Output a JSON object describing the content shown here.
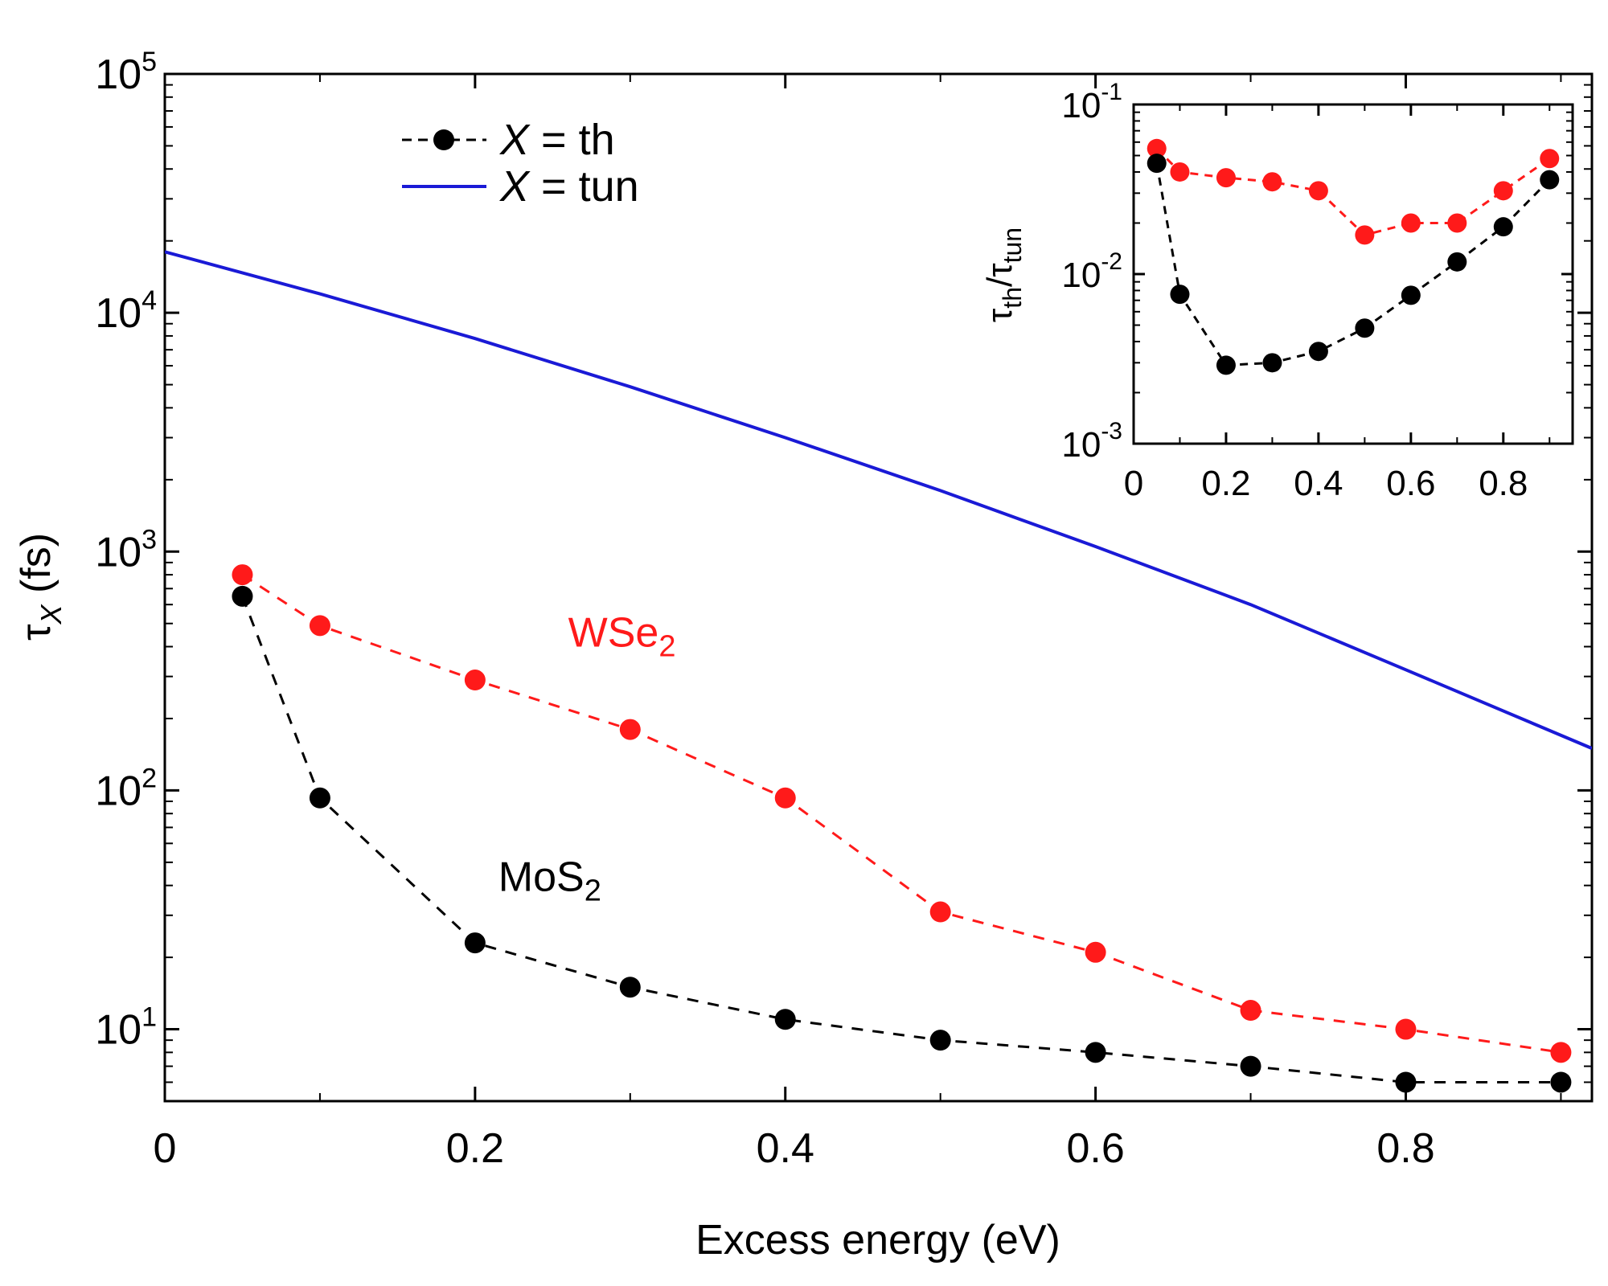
{
  "chart_data": [
    {
      "type": "line",
      "title": "",
      "xlabel": "Excess energy (eV)",
      "ylabel": {
        "main": "τ",
        "sub": "X",
        "unit": " (fs)"
      },
      "xscale": "linear",
      "yscale": "log",
      "xlim": [
        0,
        0.92
      ],
      "ylim": [
        5,
        100000
      ],
      "xticks": [
        {
          "value": 0,
          "label": "0"
        },
        {
          "value": 0.2,
          "label": "0.2"
        },
        {
          "value": 0.4,
          "label": "0.4"
        },
        {
          "value": 0.6,
          "label": "0.6"
        },
        {
          "value": 0.8,
          "label": "0.8"
        }
      ],
      "yticks": [
        {
          "value": 10,
          "base": "10",
          "exp": "1"
        },
        {
          "value": 100,
          "base": "10",
          "exp": "2"
        },
        {
          "value": 1000,
          "base": "10",
          "exp": "3"
        },
        {
          "value": 10000,
          "base": "10",
          "exp": "4"
        },
        {
          "value": 100000,
          "base": "10",
          "exp": "5"
        }
      ],
      "legend": {
        "placement": "top-left",
        "entries": [
          {
            "italic": "X",
            "text": " = th",
            "style": "black dashed line with circle marker"
          },
          {
            "italic": "X",
            "text": " = tun",
            "style": "blue solid line"
          }
        ]
      },
      "series": [
        {
          "name": "X = tun",
          "color": "#1a1ad6",
          "line": "solid",
          "marker": "none",
          "x": [
            0,
            0.1,
            0.2,
            0.3,
            0.4,
            0.5,
            0.6,
            0.7,
            0.8,
            0.92
          ],
          "y": [
            18000,
            12000,
            7800,
            4900,
            3000,
            1800,
            1050,
            600,
            320,
            150
          ]
        },
        {
          "name": "WSe2 (X = th)",
          "color": "#ff1a1a",
          "line": "dashed",
          "marker": "circle",
          "x": [
            0.05,
            0.1,
            0.2,
            0.3,
            0.4,
            0.5,
            0.6,
            0.7,
            0.8,
            0.9
          ],
          "y": [
            800,
            490,
            290,
            180,
            93,
            31,
            21,
            12,
            10,
            8
          ]
        },
        {
          "name": "MoS2 (X = th)",
          "color": "#000000",
          "line": "dashed",
          "marker": "circle",
          "x": [
            0.05,
            0.1,
            0.2,
            0.3,
            0.4,
            0.5,
            0.6,
            0.7,
            0.8,
            0.9
          ],
          "y": [
            650,
            93,
            23,
            15,
            11,
            9,
            8,
            7,
            6,
            6
          ]
        }
      ],
      "annotations": [
        {
          "text": "WSe",
          "sub": "2",
          "color": "#ff1a1a",
          "x": 0.26,
          "y": 400
        },
        {
          "text": "MoS",
          "sub": "2",
          "color": "#000000",
          "x": 0.215,
          "y": 38
        }
      ]
    },
    {
      "type": "line",
      "title": "",
      "placement": "inset top-right",
      "xlabel": "",
      "ylabel": {
        "main": "τ",
        "sub1": "th",
        "sep": "/τ",
        "sub2": "tun"
      },
      "xscale": "linear",
      "yscale": "log",
      "xlim": [
        0,
        0.95
      ],
      "ylim": [
        0.001,
        0.1
      ],
      "xticks": [
        {
          "value": 0,
          "label": "0"
        },
        {
          "value": 0.2,
          "label": "0.2"
        },
        {
          "value": 0.4,
          "label": "0.4"
        },
        {
          "value": 0.6,
          "label": "0.6"
        },
        {
          "value": 0.8,
          "label": "0.8"
        }
      ],
      "yticks": [
        {
          "value": 0.001,
          "base": "10",
          "exp": "-3"
        },
        {
          "value": 0.01,
          "base": "10",
          "exp": "-2"
        },
        {
          "value": 0.1,
          "base": "10",
          "exp": "-1"
        }
      ],
      "series": [
        {
          "name": "WSe2",
          "color": "#ff1a1a",
          "line": "dashed",
          "marker": "circle",
          "x": [
            0.05,
            0.1,
            0.2,
            0.3,
            0.4,
            0.5,
            0.6,
            0.7,
            0.8,
            0.9
          ],
          "y": [
            0.055,
            0.04,
            0.037,
            0.035,
            0.031,
            0.017,
            0.02,
            0.02,
            0.031,
            0.048
          ]
        },
        {
          "name": "MoS2",
          "color": "#000000",
          "line": "dashed",
          "marker": "circle",
          "x": [
            0.05,
            0.1,
            0.2,
            0.3,
            0.4,
            0.5,
            0.6,
            0.7,
            0.8,
            0.9
          ],
          "y": [
            0.045,
            0.0076,
            0.0029,
            0.003,
            0.0035,
            0.0048,
            0.0075,
            0.0118,
            0.019,
            0.036
          ]
        }
      ]
    }
  ]
}
